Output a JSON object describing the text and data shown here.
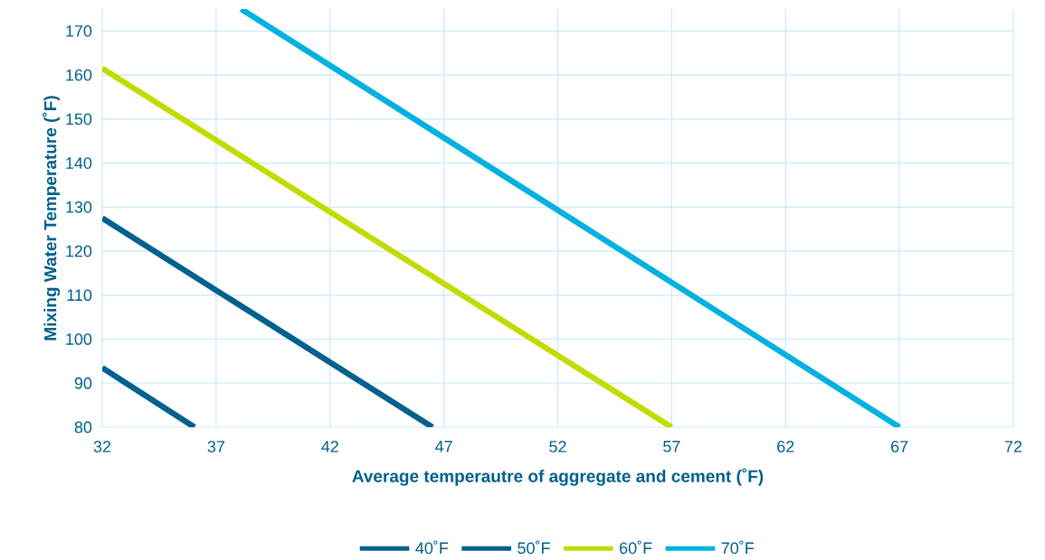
{
  "chart_data": {
    "type": "line",
    "xlabel": "Average temperautre of aggregate and cement (˚F)",
    "ylabel": "Mixing Water Temperature (˚F)",
    "xlim": [
      32,
      72
    ],
    "xticks": [
      32,
      37,
      42,
      47,
      52,
      57,
      62,
      67,
      72
    ],
    "ylim": [
      80,
      175
    ],
    "yticks": [
      80,
      90,
      100,
      110,
      120,
      130,
      140,
      150,
      160,
      170
    ],
    "grid": true,
    "legend": "bottom",
    "marker": "none",
    "line_style": "solid",
    "series": [
      {
        "name": "40˚F",
        "color": "#00618f",
        "x": [
          32,
          36.05
        ],
        "values": [
          93.5,
          80
        ]
      },
      {
        "name": "50˚F",
        "color": "#00618f",
        "x": [
          32,
          46.5
        ],
        "values": [
          127.5,
          80
        ]
      },
      {
        "name": "60˚F",
        "color": "#c2dc00",
        "x": [
          32,
          57
        ],
        "values": [
          161.5,
          80
        ]
      },
      {
        "name": "70˚F",
        "color": "#00b1e1",
        "x": [
          38.1,
          67
        ],
        "values": [
          175,
          80
        ]
      }
    ]
  }
}
